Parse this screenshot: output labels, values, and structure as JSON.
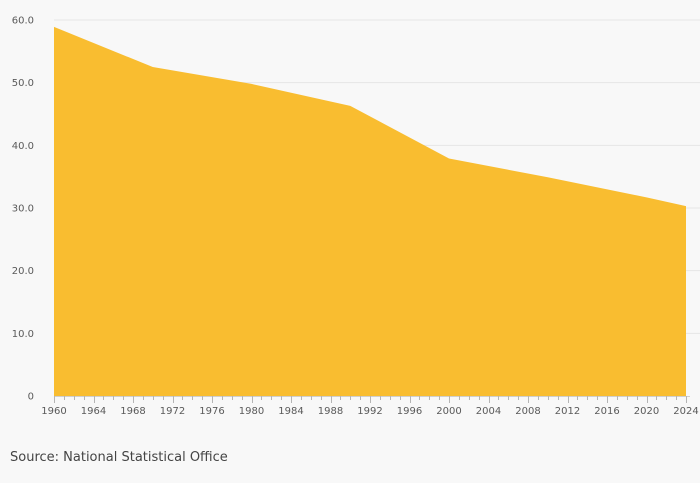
{
  "chart_data": {
    "type": "area",
    "title": "",
    "xlabel": "",
    "ylabel": "",
    "x": [
      1960,
      1970,
      1980,
      1990,
      2000,
      2010,
      2020,
      2024
    ],
    "series": [
      {
        "values": [
          58.9,
          52.5,
          49.8,
          46.3,
          37.9,
          34.9,
          31.7,
          30.3
        ]
      }
    ],
    "xlim": [
      1960,
      2024
    ],
    "ylim": [
      0,
      60
    ],
    "y_ticks": [
      0,
      10,
      20,
      30,
      40,
      50,
      60
    ],
    "y_tick_labels": [
      "0",
      "10.0",
      "20.0",
      "30.0",
      "40.0",
      "50.0",
      "60.0"
    ],
    "x_ticks": [
      1960,
      1964,
      1968,
      1972,
      1976,
      1980,
      1984,
      1988,
      1992,
      1996,
      2000,
      2004,
      2008,
      2012,
      2016,
      2020,
      2024
    ],
    "x_minor_tick_step": 1,
    "grid": true,
    "legend": "none",
    "colors": {
      "area": "#f9bd30",
      "background": "#f8f8f8"
    }
  },
  "footer": {
    "source": "Source: National Statistical Office"
  }
}
